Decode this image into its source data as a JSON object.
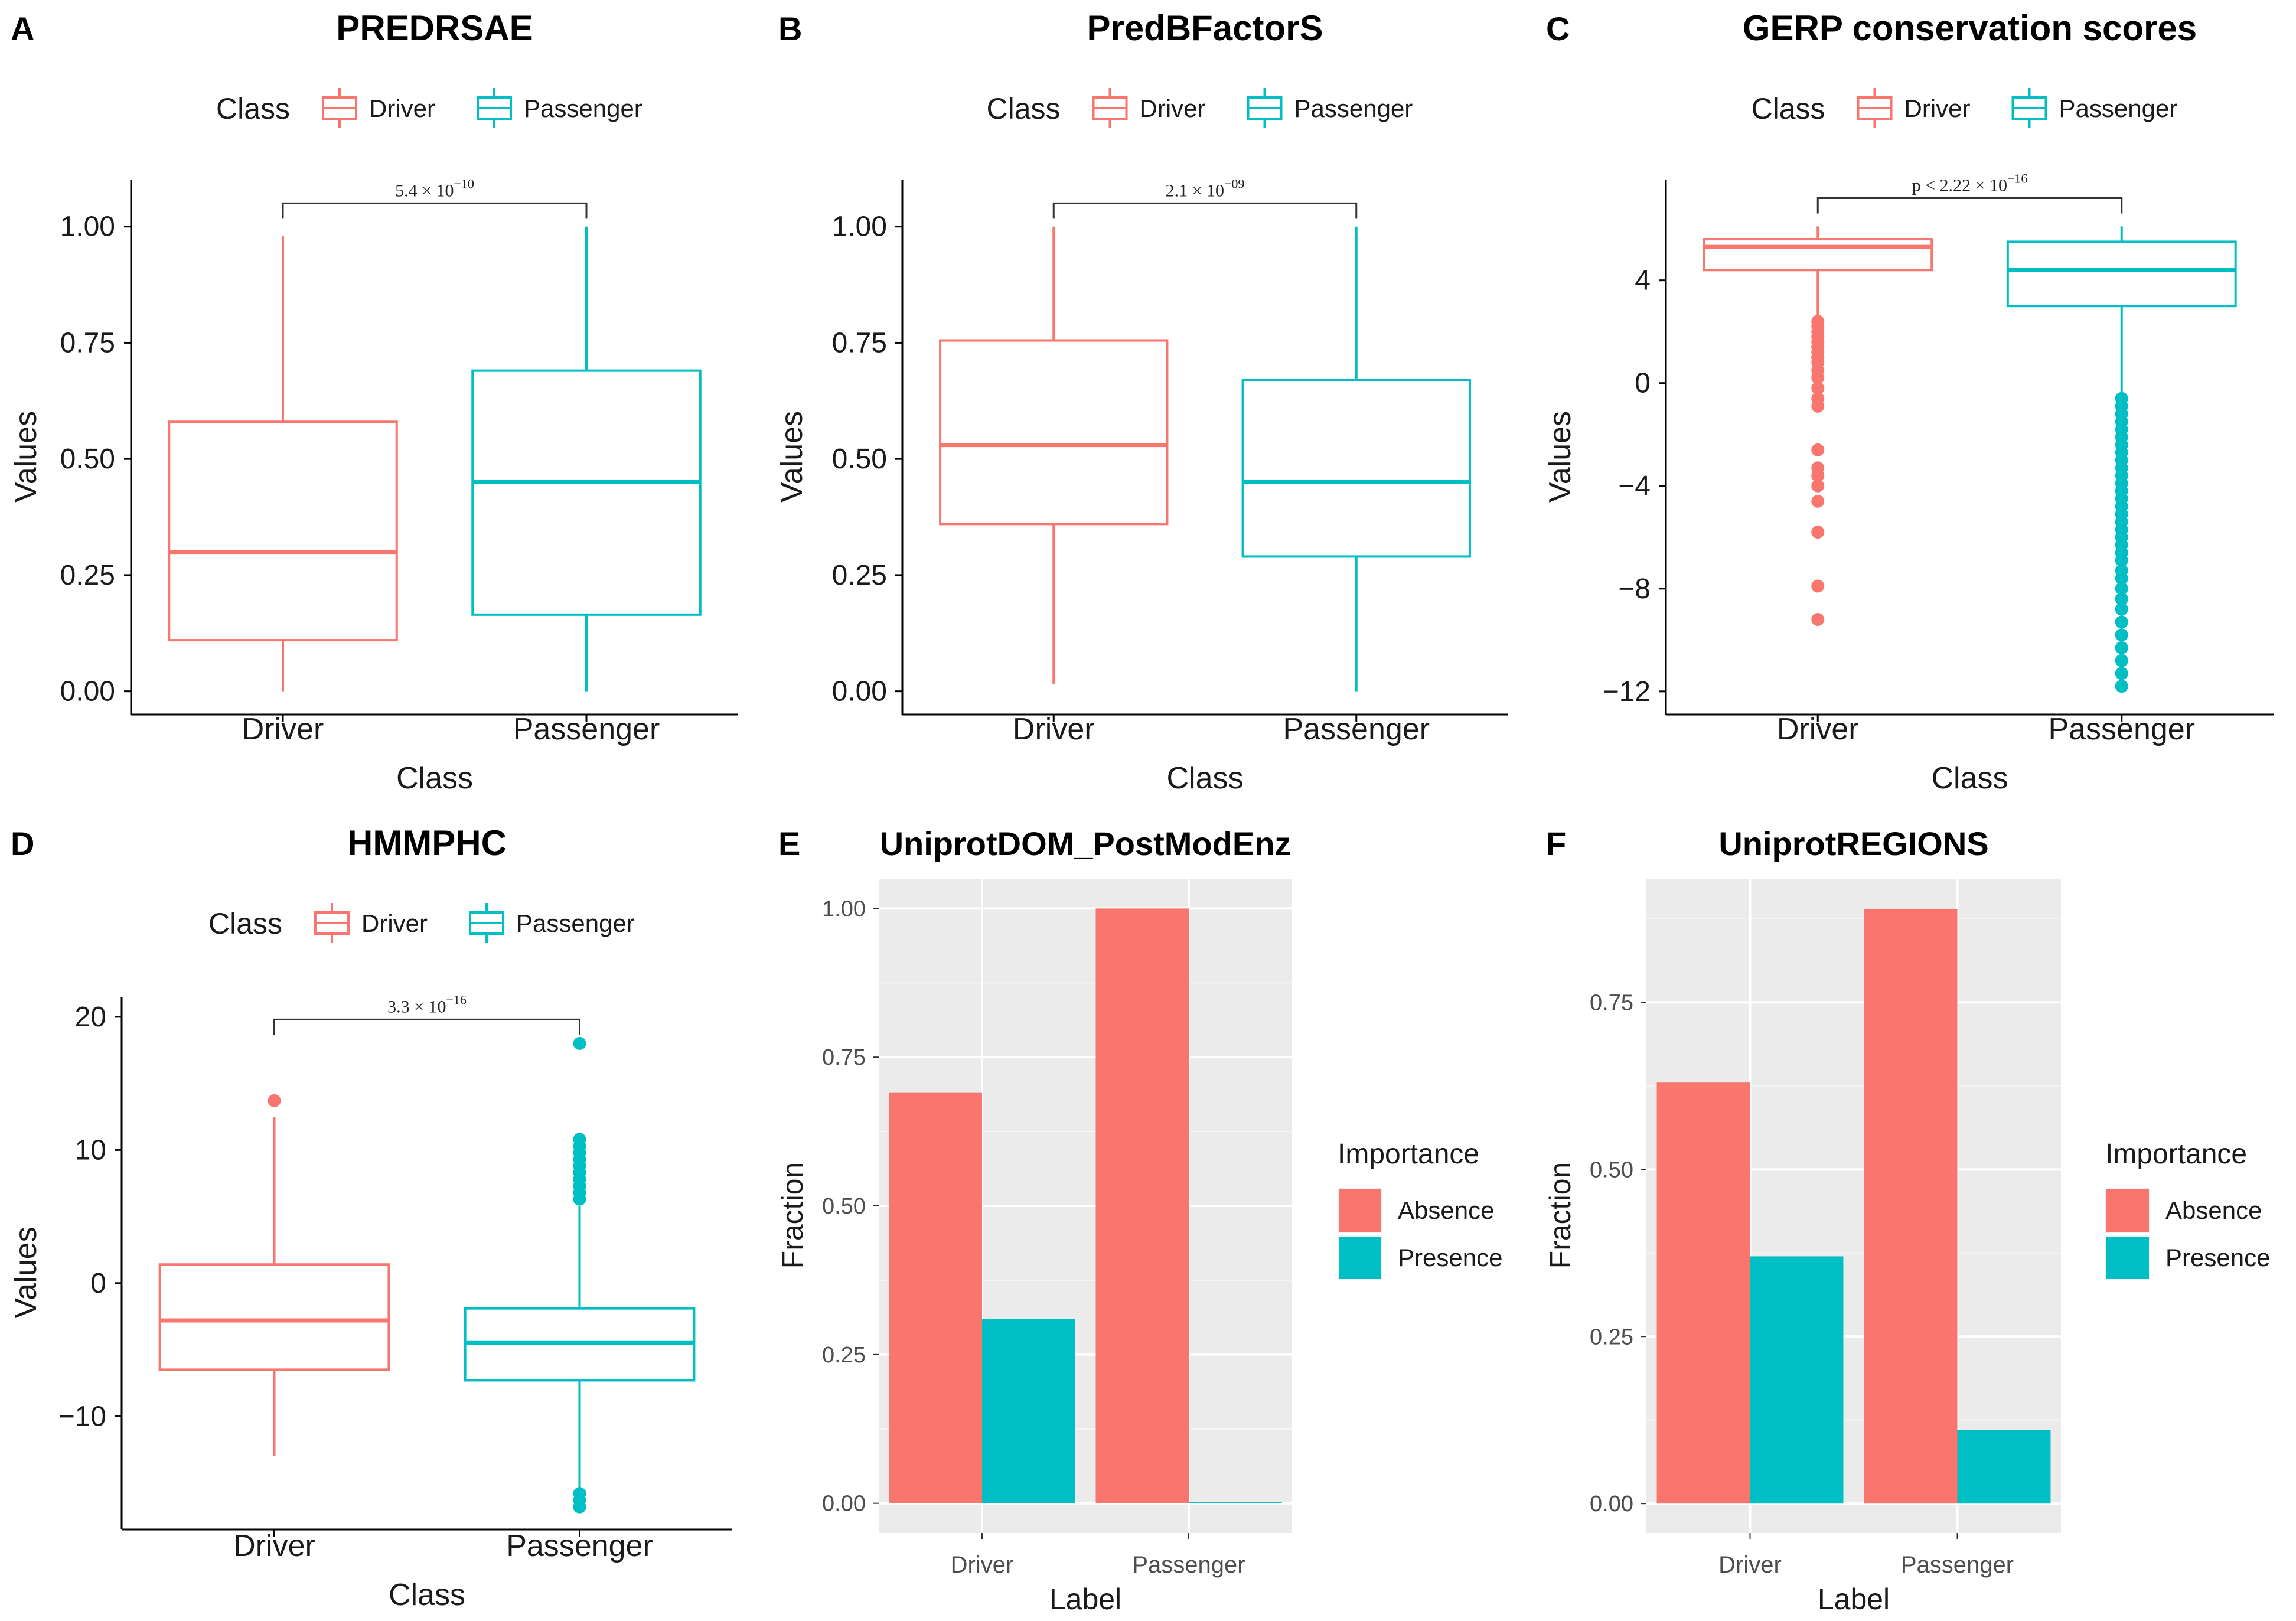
{
  "colors": {
    "driver": "#F8766D",
    "passenger": "#00BFC4",
    "panel_bg": "#EBEBEB",
    "grid_major": "#FFFFFF",
    "axis": "#000000",
    "text": "#1A1A1A",
    "tick_text": "#4D4D4D"
  },
  "chart_data": [
    {
      "id": "A",
      "letter": "A",
      "type": "box",
      "title": "PREDRSAE",
      "xlabel": "Class",
      "ylabel": "Values",
      "legend": {
        "title": "Class",
        "labels": [
          "Driver",
          "Passenger"
        ]
      },
      "categories": [
        "Driver",
        "Passenger"
      ],
      "ylim": [
        -0.05,
        1.1
      ],
      "yticks": [
        0,
        0.25,
        0.5,
        0.75,
        1.0
      ],
      "ytick_labels": [
        "0.00",
        "0.25",
        "0.50",
        "0.75",
        "1.00"
      ],
      "boxes": [
        {
          "name": "Driver",
          "min": 0.0,
          "q1": 0.11,
          "median": 0.3,
          "q3": 0.58,
          "max": 0.98,
          "outliers": []
        },
        {
          "name": "Passenger",
          "min": 0.0,
          "q1": 0.165,
          "median": 0.45,
          "q3": 0.69,
          "max": 1.0,
          "outliers": []
        }
      ],
      "pvalue": {
        "y": 1.05,
        "mantissa": "5.4 × 10",
        "exponent": "−10"
      }
    },
    {
      "id": "B",
      "letter": "B",
      "type": "box",
      "title": "PredBFactorS",
      "xlabel": "Class",
      "ylabel": "Values",
      "legend": {
        "title": "Class",
        "labels": [
          "Driver",
          "Passenger"
        ]
      },
      "categories": [
        "Driver",
        "Passenger"
      ],
      "ylim": [
        -0.05,
        1.1
      ],
      "yticks": [
        0,
        0.25,
        0.5,
        0.75,
        1.0
      ],
      "ytick_labels": [
        "0.00",
        "0.25",
        "0.50",
        "0.75",
        "1.00"
      ],
      "boxes": [
        {
          "name": "Driver",
          "min": 0.015,
          "q1": 0.36,
          "median": 0.53,
          "q3": 0.755,
          "max": 1.0,
          "outliers": []
        },
        {
          "name": "Passenger",
          "min": 0.0,
          "q1": 0.29,
          "median": 0.45,
          "q3": 0.67,
          "max": 1.0,
          "outliers": []
        }
      ],
      "pvalue": {
        "y": 1.05,
        "mantissa": "2.1 × 10",
        "exponent": "−09"
      }
    },
    {
      "id": "C",
      "letter": "C",
      "type": "box",
      "title": "GERP conservation scores",
      "xlabel": "Class",
      "ylabel": "Values",
      "legend": {
        "title": "Class",
        "labels": [
          "Driver",
          "Passenger"
        ]
      },
      "categories": [
        "Driver",
        "Passenger"
      ],
      "ylim": [
        -12.9,
        7.9
      ],
      "yticks": [
        -12,
        -8,
        -4,
        0,
        4
      ],
      "ytick_labels": [
        "−12",
        "−8",
        "−4",
        "0",
        "4"
      ],
      "boxes": [
        {
          "name": "Driver",
          "min": 2.6,
          "q1": 4.4,
          "median": 5.3,
          "q3": 5.6,
          "max": 6.1,
          "outliers": [
            2.4,
            2.2,
            2.0,
            1.8,
            1.6,
            1.4,
            1.2,
            1.0,
            0.8,
            0.5,
            0.2,
            -0.2,
            -0.6,
            -0.9,
            -2.6,
            -3.3,
            -3.6,
            -4.0,
            -4.6,
            -5.8,
            -7.9,
            -9.2
          ]
        },
        {
          "name": "Passenger",
          "min": -0.6,
          "q1": 3.0,
          "median": 4.4,
          "q3": 5.5,
          "max": 6.1,
          "outliers": [
            -0.6,
            -0.9,
            -1.2,
            -1.5,
            -1.8,
            -2.1,
            -2.4,
            -2.7,
            -3.0,
            -3.3,
            -3.6,
            -3.9,
            -4.2,
            -4.5,
            -4.8,
            -5.1,
            -5.4,
            -5.7,
            -6.0,
            -6.3,
            -6.6,
            -6.9,
            -7.3,
            -7.6,
            -8.0,
            -8.4,
            -8.8,
            -9.3,
            -9.8,
            -10.3,
            -10.8,
            -11.3,
            -11.8
          ]
        }
      ],
      "pvalue": {
        "y": 7.2,
        "mantissa": "p < 2.22 × 10",
        "exponent": "−16"
      }
    },
    {
      "id": "D",
      "letter": "D",
      "type": "box",
      "title": "HMMPHC",
      "xlabel": "Class",
      "ylabel": "Values",
      "legend": {
        "title": "Class",
        "labels": [
          "Driver",
          "Passenger"
        ]
      },
      "categories": [
        "Driver",
        "Passenger"
      ],
      "ylim": [
        -18.5,
        21.5
      ],
      "yticks": [
        -10,
        0,
        10,
        20
      ],
      "ytick_labels": [
        "−10",
        "0",
        "10",
        "20"
      ],
      "boxes": [
        {
          "name": "Driver",
          "min": -13.0,
          "q1": -6.5,
          "median": -2.8,
          "q3": 1.4,
          "max": 12.5,
          "outliers": [
            13.7
          ]
        },
        {
          "name": "Passenger",
          "min": -15.5,
          "q1": -7.3,
          "median": -4.5,
          "q3": -1.9,
          "max": 5.8,
          "outliers": [
            6.3,
            6.8,
            7.3,
            7.8,
            8.3,
            8.8,
            9.3,
            9.8,
            10.3,
            10.8,
            18.0,
            -15.8,
            -16.3,
            -16.8
          ]
        }
      ],
      "pvalue": {
        "y": 19.8,
        "mantissa": "3.3 × 10",
        "exponent": "−16"
      }
    },
    {
      "id": "E",
      "letter": "E",
      "type": "bar",
      "title": "UniprotDOM_PostModEnz",
      "xlabel": "Label",
      "ylabel": "Fraction",
      "legend": {
        "title": "Importance",
        "labels": [
          "Absence",
          "Presence"
        ]
      },
      "categories": [
        "Driver",
        "Passenger"
      ],
      "ylim": [
        -0.05,
        1.05
      ],
      "yticks": [
        0,
        0.25,
        0.5,
        0.75,
        1.0
      ],
      "ytick_labels": [
        "0.00",
        "0.25",
        "0.50",
        "0.75",
        "1.00"
      ],
      "series": [
        {
          "name": "Absence",
          "values": [
            0.69,
            1.0
          ]
        },
        {
          "name": "Presence",
          "values": [
            0.31,
            0.002
          ]
        }
      ]
    },
    {
      "id": "F",
      "letter": "F",
      "type": "bar",
      "title": "UniprotREGIONS",
      "xlabel": "Label",
      "ylabel": "Fraction",
      "legend": {
        "title": "Importance",
        "labels": [
          "Absence",
          "Presence"
        ]
      },
      "categories": [
        "Driver",
        "Passenger"
      ],
      "ylim": [
        -0.044,
        0.935
      ],
      "yticks": [
        0,
        0.25,
        0.5,
        0.75
      ],
      "ytick_labels": [
        "0.00",
        "0.25",
        "0.50",
        "0.75"
      ],
      "series": [
        {
          "name": "Absence",
          "values": [
            0.63,
            0.89
          ]
        },
        {
          "name": "Presence",
          "values": [
            0.37,
            0.11
          ]
        }
      ]
    }
  ]
}
